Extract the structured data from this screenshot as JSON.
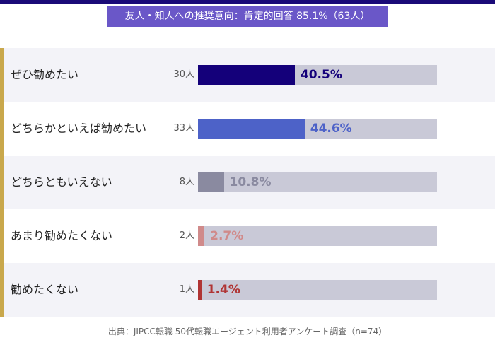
{
  "chart_data": {
    "type": "bar",
    "title": "友人・知人への推奨意向：肯定的回答 85.1%（63人）",
    "categories": [
      "ぜひ勧めたい",
      "どちらかといえば勧めたい",
      "どちらともいえない",
      "あまり勧めたくない",
      "勧めたくない"
    ],
    "counts": [
      "30人",
      "33人",
      "8人",
      "2人",
      "1人"
    ],
    "values": [
      40.5,
      44.6,
      10.8,
      2.7,
      1.4
    ],
    "value_labels": [
      "40.5%",
      "44.6%",
      "10.8%",
      "2.7%",
      "1.4%"
    ],
    "colors": [
      "#14007a",
      "#4d62c8",
      "#8a8aa0",
      "#d08a8a",
      "#b03434"
    ],
    "xlim": [
      0,
      100
    ],
    "source": "出典：JIPCC転職 50代転職エージェント利用者アンケート調査（n=74）"
  }
}
